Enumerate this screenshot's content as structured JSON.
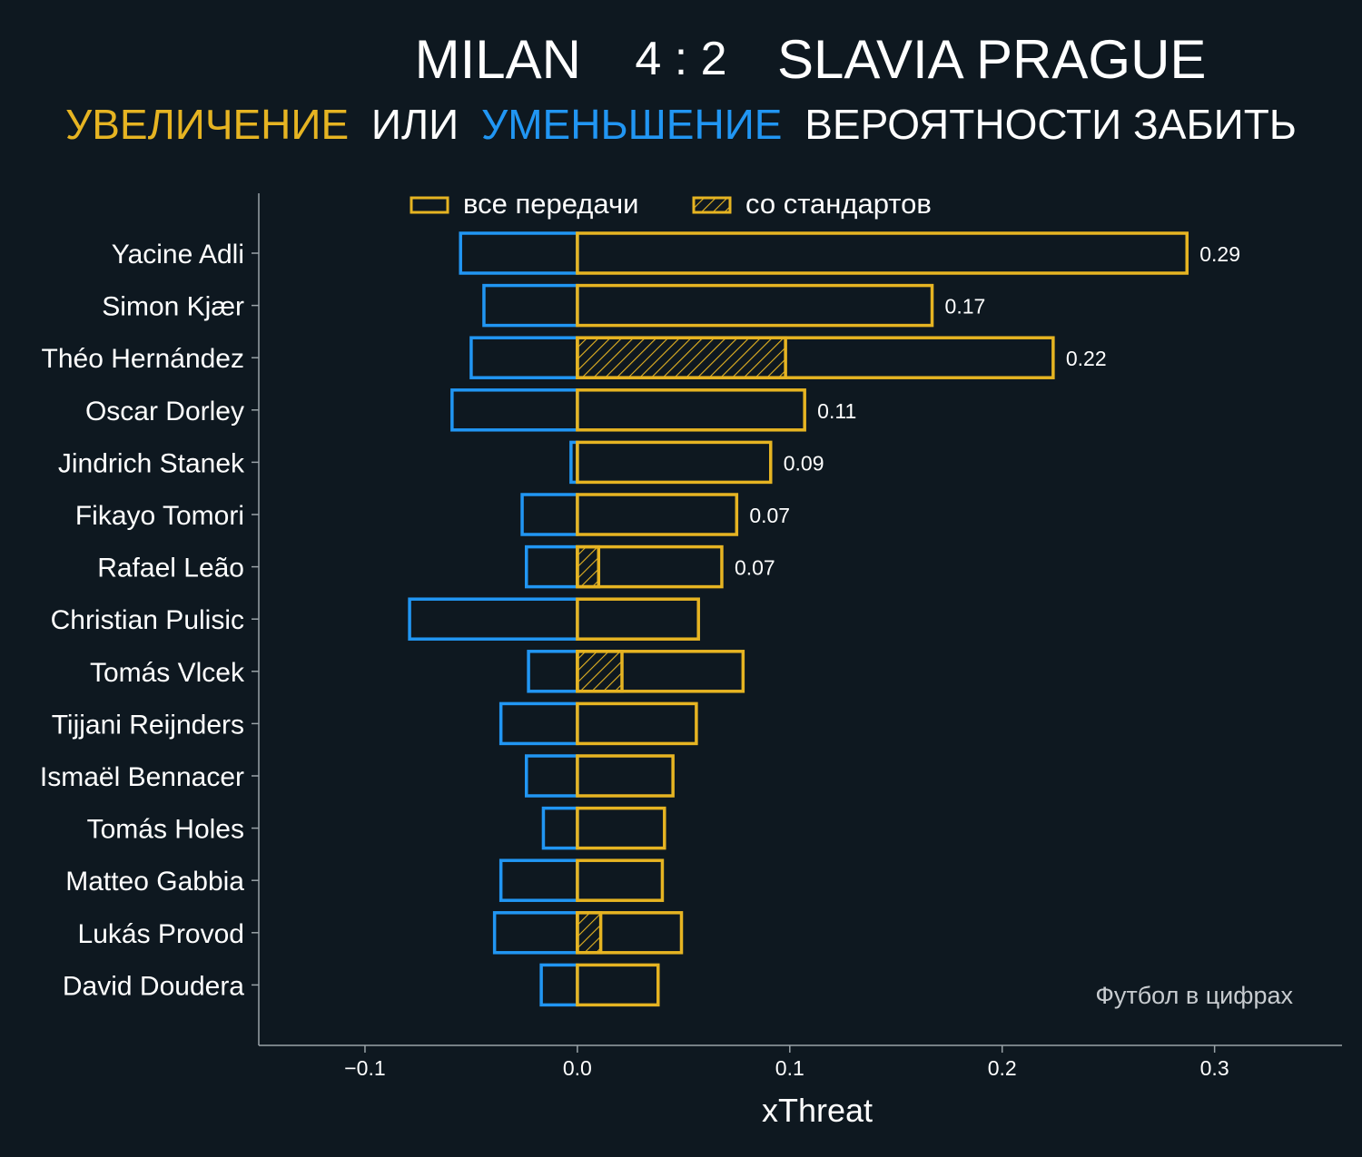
{
  "colors": {
    "background": "#0e1820",
    "increase": "#e6b422",
    "decrease": "#2196f3",
    "axis": "#9aa3a8",
    "text": "#ffffff",
    "credit": "#c8ccd0"
  },
  "header": {
    "home_team": "MILAN",
    "score": "4 : 2",
    "away_team": "SLAVIA PRAGUE",
    "subtitle_increase": "УВЕЛИЧЕНИЕ",
    "subtitle_or": "ИЛИ",
    "subtitle_decrease": "УМЕНЬШЕНИЕ",
    "subtitle_rest": "ВЕРОЯТНОСТИ ЗАБИТЬ"
  },
  "credit": "Футбол в цифрах",
  "chart_data": {
    "type": "bar",
    "orientation": "horizontal",
    "xlabel": "xThreat",
    "xlim": [
      -0.15,
      0.36
    ],
    "xticks": [
      -0.1,
      0.0,
      0.1,
      0.2,
      0.3
    ],
    "xtick_labels": [
      "−0.1",
      "0.0",
      "0.1",
      "0.2",
      "0.3"
    ],
    "legend": {
      "position": "top",
      "entries": [
        "все передачи",
        "со стандартов"
      ]
    },
    "categories": [
      "Yacine Adli",
      "Simon Kjær",
      "Théo Hernández",
      "Oscar Dorley",
      "Jindrich Stanek",
      "Fikayo Tomori",
      "Rafael Leão",
      "Christian Pulisic",
      "Tomás Vlcek",
      "Tijjani Reijnders",
      "Ismaël Bennacer",
      "Tomás Holes",
      "Matteo Gabbia",
      "Lukás Provod",
      "David Doudera"
    ],
    "series": [
      {
        "name": "все передачи (увеличение)",
        "values": [
          0.287,
          0.167,
          0.224,
          0.107,
          0.091,
          0.075,
          0.068,
          0.057,
          0.078,
          0.056,
          0.045,
          0.041,
          0.04,
          0.049,
          0.038
        ]
      },
      {
        "name": "все передачи (уменьшение)",
        "values": [
          -0.055,
          -0.044,
          -0.05,
          -0.059,
          -0.003,
          -0.026,
          -0.024,
          -0.079,
          -0.023,
          -0.036,
          -0.024,
          -0.016,
          -0.036,
          -0.039,
          -0.017
        ]
      },
      {
        "name": "со стандартов",
        "values": [
          0,
          0,
          0.098,
          0,
          0,
          0,
          0.01,
          0,
          0.021,
          0,
          0,
          0,
          0,
          0.011,
          0
        ]
      }
    ],
    "value_labels": [
      "0.29",
      "0.17",
      "0.22",
      "0.11",
      "0.09",
      "0.07",
      "0.07",
      null,
      null,
      null,
      null,
      null,
      null,
      null,
      null
    ]
  }
}
